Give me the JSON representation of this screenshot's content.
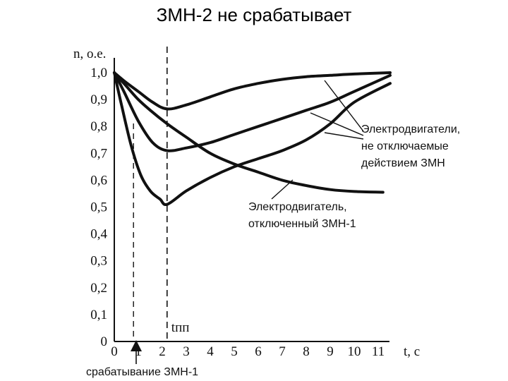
{
  "slide": {
    "title": "ЗМН-2 не срабатывает"
  },
  "chart_data": {
    "type": "line",
    "title": "",
    "xlabel": "t, с",
    "ylabel": "n, о.е.",
    "xlim": [
      0,
      11.5
    ],
    "ylim": [
      0,
      1.0
    ],
    "x_ticks": [
      0,
      1,
      2,
      3,
      4,
      5,
      6,
      7,
      8,
      9,
      10,
      11
    ],
    "y_ticks": [
      0,
      0.1,
      0.2,
      0.3,
      0.4,
      0.5,
      0.6,
      0.7,
      0.8,
      0.9,
      1.0
    ],
    "y_tick_labels": [
      "0",
      "0,1",
      "0,2",
      "0,3",
      "0,4",
      "0,5",
      "0,6",
      "0,7",
      "0,8",
      "0,9",
      "1,0"
    ],
    "grid": false,
    "series": [
      {
        "x": [
          0,
          0.4,
          1.0,
          1.6,
          2.2,
          3,
          4,
          5,
          6,
          7,
          8,
          9,
          10,
          11.5
        ],
        "y": [
          1.0,
          0.97,
          0.93,
          0.89,
          0.865,
          0.88,
          0.91,
          0.94,
          0.96,
          0.975,
          0.985,
          0.99,
          0.995,
          1.0
        ]
      },
      {
        "x": [
          0,
          0.4,
          1.0,
          1.6,
          2.2,
          3,
          4,
          5,
          6,
          7,
          8,
          9,
          10,
          11.5
        ],
        "y": [
          1.0,
          0.93,
          0.82,
          0.74,
          0.71,
          0.72,
          0.74,
          0.77,
          0.8,
          0.83,
          0.86,
          0.89,
          0.93,
          0.99
        ]
      },
      {
        "x": [
          0,
          0.3,
          0.7,
          1.1,
          1.5,
          1.9,
          2.2,
          3,
          4,
          5,
          6,
          7,
          8,
          9,
          10,
          11.5
        ],
        "y": [
          1.0,
          0.88,
          0.73,
          0.62,
          0.56,
          0.53,
          0.51,
          0.56,
          0.61,
          0.65,
          0.68,
          0.71,
          0.75,
          0.81,
          0.89,
          0.96
        ]
      },
      {
        "x": [
          0,
          0.5,
          1.0,
          1.5,
          2.2,
          3,
          4,
          5,
          6,
          7,
          8,
          9,
          10,
          11.2
        ],
        "y": [
          1.0,
          0.95,
          0.9,
          0.86,
          0.81,
          0.76,
          0.7,
          0.66,
          0.63,
          0.6,
          0.58,
          0.565,
          0.558,
          0.555
        ]
      }
    ],
    "vertical_markers": [
      {
        "x": 2.2,
        "label": "tпп"
      },
      {
        "x": 0.8,
        "label": ""
      }
    ],
    "annotations": [
      {
        "lines": [
          "Электродвигатели,",
          "не отключаемые",
          "действием ЗМН"
        ]
      },
      {
        "lines": [
          "Электродвигатель,",
          "отключенный ЗМН-1"
        ]
      },
      {
        "lines": [
          "срабатывание ЗМН-1"
        ]
      }
    ],
    "colors": {
      "line": "#111111",
      "axis": "#111111"
    }
  }
}
